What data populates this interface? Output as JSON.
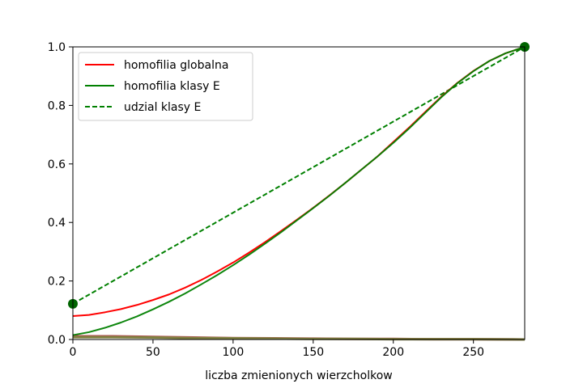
{
  "chart_data": {
    "type": "line",
    "title": "",
    "xlabel": "liczba zmienionych wierzcholkow",
    "ylabel": "",
    "xlim": [
      0,
      282
    ],
    "ylim": [
      0,
      1.0
    ],
    "xticks": [
      0,
      50,
      100,
      150,
      200,
      250
    ],
    "yticks": [
      0.0,
      0.2,
      0.4,
      0.6,
      0.8,
      1.0
    ],
    "xtick_labels": [
      "0",
      "50",
      "100",
      "150",
      "200",
      "250"
    ],
    "ytick_labels": [
      "0.0",
      "0.2",
      "0.4",
      "0.6",
      "0.8",
      "1.0"
    ],
    "grid": false,
    "legend_position": "upper-left",
    "series": [
      {
        "name": "homofilia globalna",
        "color": "#ff0000",
        "style": "solid",
        "in_legend": true,
        "x": [
          0,
          10,
          20,
          30,
          40,
          50,
          60,
          70,
          80,
          90,
          100,
          110,
          120,
          130,
          140,
          150,
          160,
          170,
          180,
          190,
          200,
          210,
          220,
          230,
          240,
          250,
          260,
          270,
          282
        ],
        "y": [
          0.08,
          0.084,
          0.093,
          0.104,
          0.118,
          0.135,
          0.154,
          0.177,
          0.203,
          0.232,
          0.263,
          0.297,
          0.333,
          0.371,
          0.41,
          0.45,
          0.492,
          0.535,
          0.58,
          0.625,
          0.675,
          0.725,
          0.778,
          0.83,
          0.877,
          0.918,
          0.952,
          0.978,
          1.0
        ]
      },
      {
        "name": "homofilia klasy E",
        "color": "#008000",
        "style": "solid",
        "in_legend": true,
        "x": [
          0,
          10,
          20,
          30,
          40,
          50,
          60,
          70,
          80,
          90,
          100,
          110,
          120,
          130,
          140,
          150,
          160,
          170,
          180,
          190,
          200,
          210,
          220,
          230,
          240,
          250,
          260,
          270,
          282
        ],
        "y": [
          0.015,
          0.025,
          0.04,
          0.058,
          0.079,
          0.103,
          0.129,
          0.157,
          0.188,
          0.22,
          0.254,
          0.29,
          0.328,
          0.367,
          0.408,
          0.449,
          0.491,
          0.535,
          0.58,
          0.625,
          0.672,
          0.722,
          0.775,
          0.828,
          0.876,
          0.917,
          0.952,
          0.978,
          1.0
        ]
      },
      {
        "name": "udzial klasy E",
        "color": "#008000",
        "style": "dashed",
        "in_legend": true,
        "x": [
          0,
          282
        ],
        "y": [
          0.122,
          1.0
        ]
      },
      {
        "name": "",
        "color": "#b05050",
        "style": "solid",
        "in_legend": false,
        "x": [
          0,
          25,
          50,
          75,
          100,
          125,
          150,
          175,
          200,
          225,
          250,
          282
        ],
        "y": [
          0.011,
          0.011,
          0.009,
          0.007,
          0.005,
          0.004,
          0.003,
          0.002,
          0.002,
          0.001,
          0.001,
          0.0
        ]
      },
      {
        "name": "",
        "color": "#808040",
        "style": "solid",
        "in_legend": false,
        "x": [
          0,
          25,
          50,
          75,
          100,
          125,
          150,
          175,
          200,
          225,
          250,
          282
        ],
        "y": [
          0.008,
          0.008,
          0.007,
          0.005,
          0.004,
          0.003,
          0.002,
          0.002,
          0.001,
          0.001,
          0.001,
          0.0
        ]
      }
    ],
    "markers": [
      {
        "x": 0,
        "y": 0.122,
        "color": "#006400"
      },
      {
        "x": 282,
        "y": 1.0,
        "color": "#006400"
      }
    ]
  }
}
